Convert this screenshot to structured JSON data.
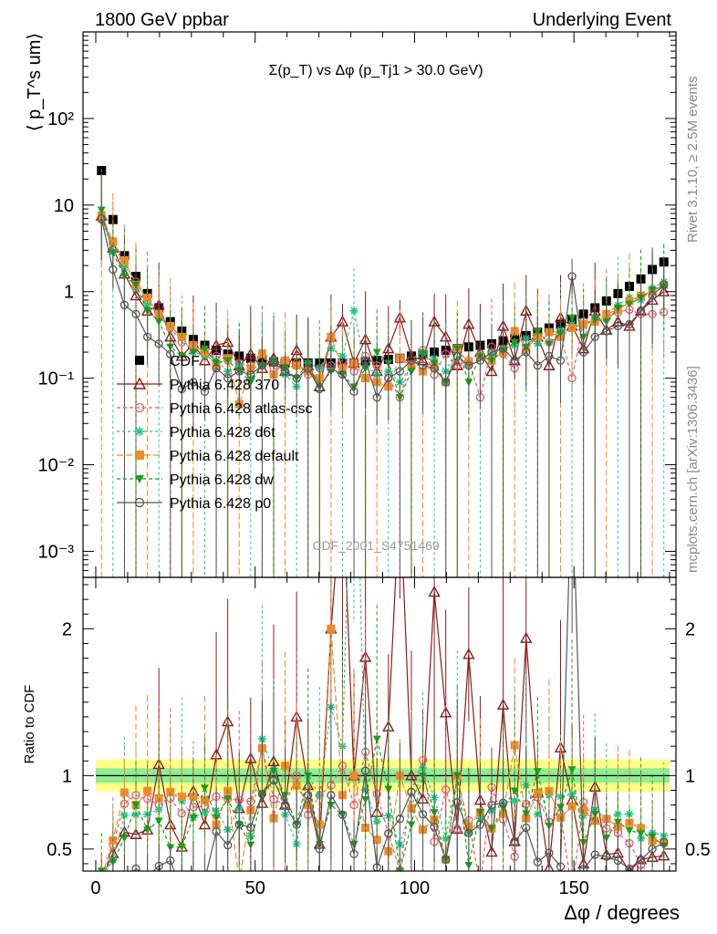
{
  "header": {
    "left": "1800 GeV ppbar",
    "right": "Underlying Event"
  },
  "side_labels": {
    "rivet": "Rivet 3.1.10, ≥ 2.5M events",
    "mcplots": "mcplots.cern.ch [arXiv:1306.3436]"
  },
  "colors": {
    "cdf": "#000000",
    "p870": "#8b1a1a",
    "atlas": "#e8566b",
    "d6t": "#1fc68a",
    "default": "#f08a2c",
    "dw": "#1aa01a",
    "p0": "#555555",
    "band_inner": "#90ee90",
    "band_outer": "#ffff88"
  },
  "chart_data": [
    {
      "type": "scatter",
      "title": "Σ(p_T) vs Δφ (p_Tj1 > 30.0 GeV)",
      "ylabel": "⟨ p_T^s um⟩",
      "scale_y": "log",
      "ylim": [
        0.0005,
        1000
      ],
      "xlim": [
        -4,
        182
      ],
      "y_ticks": [
        "10⁻³",
        "10⁻²",
        "10⁻¹",
        "1",
        "10",
        "10²"
      ],
      "y_tick_values": [
        0.001,
        0.01,
        0.1,
        1,
        10,
        100
      ],
      "watermark": "CDF_2001_S4751469",
      "legend_position": "lower-left",
      "x": [
        1.8,
        5.4,
        9.0,
        12.6,
        16.2,
        19.8,
        23.4,
        27.0,
        30.6,
        34.2,
        37.8,
        41.4,
        45.0,
        48.6,
        52.2,
        55.8,
        59.4,
        63.0,
        66.6,
        70.2,
        73.8,
        77.4,
        81.0,
        84.6,
        88.2,
        91.8,
        95.4,
        99.0,
        102.6,
        106.2,
        109.8,
        113.4,
        117.0,
        120.6,
        124.2,
        127.8,
        131.4,
        135.0,
        138.6,
        142.2,
        145.8,
        149.4,
        153.0,
        156.6,
        160.2,
        163.8,
        167.4,
        171.0,
        174.6,
        178.2
      ],
      "series": [
        {
          "name": "CDF",
          "marker": "filled-square",
          "values": [
            25.0,
            6.8,
            2.6,
            1.5,
            0.95,
            0.65,
            0.45,
            0.35,
            0.28,
            0.24,
            0.21,
            0.19,
            0.18,
            0.17,
            0.16,
            0.155,
            0.15,
            0.15,
            0.15,
            0.15,
            0.15,
            0.15,
            0.15,
            0.155,
            0.16,
            0.165,
            0.17,
            0.18,
            0.19,
            0.2,
            0.21,
            0.22,
            0.23,
            0.24,
            0.25,
            0.27,
            0.29,
            0.31,
            0.34,
            0.38,
            0.42,
            0.48,
            0.55,
            0.65,
            0.78,
            0.95,
            1.15,
            1.4,
            1.8,
            2.2
          ]
        },
        {
          "name": "Pythia 6.428 370",
          "marker": "open-triangle",
          "values": [
            7.5,
            3.2,
            1.6,
            0.9,
            0.6,
            0.7,
            0.3,
            0.18,
            0.25,
            0.16,
            0.24,
            0.26,
            0.14,
            0.19,
            0.13,
            0.17,
            0.12,
            0.21,
            0.14,
            0.08,
            0.3,
            0.45,
            0.15,
            0.28,
            0.12,
            0.22,
            0.5,
            0.18,
            0.16,
            0.45,
            0.3,
            0.14,
            0.42,
            0.2,
            0.12,
            0.4,
            0.16,
            0.6,
            0.3,
            0.14,
            0.5,
            0.4,
            0.22,
            0.6,
            0.36,
            0.45,
            0.4,
            0.6,
            0.8,
            1.0
          ]
        },
        {
          "name": "Pythia 6.428 atlas-csc",
          "marker": "open-circle",
          "values": [
            6.8,
            3.6,
            2.1,
            1.3,
            0.8,
            0.52,
            0.38,
            0.26,
            0.22,
            0.19,
            0.18,
            0.16,
            0.15,
            0.14,
            0.19,
            0.13,
            0.12,
            0.15,
            0.11,
            0.13,
            0.14,
            0.16,
            0.12,
            0.18,
            0.14,
            0.1,
            0.06,
            0.16,
            0.21,
            0.11,
            0.19,
            0.14,
            0.16,
            0.06,
            0.23,
            0.19,
            0.13,
            0.25,
            0.29,
            0.26,
            0.31,
            0.1,
            0.45,
            0.45,
            0.5,
            0.58,
            0.62,
            0.55,
            0.55,
            0.58
          ]
        },
        {
          "name": "Pythia 6.428 d6t",
          "marker": "star",
          "values": [
            7.2,
            2.9,
            1.9,
            1.1,
            0.7,
            0.5,
            0.4,
            0.29,
            0.2,
            0.18,
            0.16,
            0.12,
            0.14,
            0.1,
            0.2,
            0.16,
            0.11,
            0.08,
            0.15,
            0.13,
            0.22,
            0.18,
            0.6,
            0.14,
            0.11,
            0.12,
            0.09,
            0.14,
            0.2,
            0.17,
            0.12,
            0.22,
            0.14,
            0.17,
            0.19,
            0.22,
            0.24,
            0.29,
            0.25,
            0.33,
            0.36,
            0.42,
            0.4,
            0.5,
            0.55,
            0.7,
            0.85,
            0.8,
            1.1,
            1.3
          ]
        },
        {
          "name": "Pythia 6.428 default",
          "marker": "filled-square",
          "values": [
            7.6,
            3.8,
            2.3,
            1.2,
            0.85,
            0.55,
            0.4,
            0.3,
            0.24,
            0.2,
            0.14,
            0.17,
            0.05,
            0.13,
            0.19,
            0.11,
            0.16,
            0.14,
            0.12,
            0.1,
            0.3,
            0.13,
            0.15,
            0.1,
            0.09,
            0.08,
            0.17,
            0.14,
            0.12,
            0.14,
            0.09,
            0.22,
            0.15,
            0.18,
            0.16,
            0.2,
            0.35,
            0.22,
            0.3,
            0.34,
            0.3,
            0.38,
            0.42,
            0.45,
            0.55,
            0.62,
            0.78,
            0.9,
            1.0,
            1.2
          ]
        },
        {
          "name": "Pythia 6.428 dw",
          "marker": "filled-triangle-down",
          "values": [
            8.8,
            2.8,
            1.5,
            1.2,
            0.6,
            0.45,
            0.23,
            0.18,
            0.2,
            0.22,
            0.15,
            0.16,
            0.12,
            0.09,
            0.14,
            0.16,
            0.13,
            0.1,
            0.15,
            0.08,
            0.12,
            0.11,
            0.08,
            0.13,
            0.2,
            0.15,
            0.06,
            0.12,
            0.19,
            0.15,
            0.09,
            0.22,
            0.09,
            0.18,
            0.16,
            0.21,
            0.26,
            0.23,
            0.35,
            0.25,
            0.33,
            0.5,
            0.3,
            0.48,
            0.45,
            0.65,
            0.72,
            0.85,
            1.05,
            1.15
          ]
        },
        {
          "name": "Pythia 6.428 p0",
          "marker": "open-circle",
          "values": [
            7.0,
            1.8,
            0.7,
            0.55,
            0.3,
            0.25,
            0.19,
            0.075,
            0.09,
            0.07,
            0.13,
            0.1,
            0.12,
            0.11,
            0.14,
            0.15,
            0.12,
            0.1,
            0.13,
            0.075,
            0.13,
            0.11,
            0.07,
            0.16,
            0.06,
            0.1,
            0.12,
            0.16,
            0.14,
            0.13,
            0.09,
            0.18,
            0.14,
            0.16,
            0.2,
            0.22,
            0.16,
            0.2,
            0.14,
            0.18,
            0.16,
            1.5,
            0.2,
            0.3,
            0.35,
            0.4,
            0.42,
            0.6,
            0.9,
            1.2
          ]
        }
      ]
    },
    {
      "type": "line",
      "ylabel": "Ratio to CDF",
      "xlabel": "Δφ / degrees",
      "ylim": [
        0.35,
        2.35
      ],
      "xlim": [
        -4,
        182
      ],
      "x_ticks": [
        0,
        50,
        100,
        150
      ],
      "y_ticks": [
        0.5,
        1,
        2
      ],
      "reference": 1,
      "band_inner_halfwidth": 0.05,
      "band_outer_halfwidth": 0.11
    }
  ]
}
